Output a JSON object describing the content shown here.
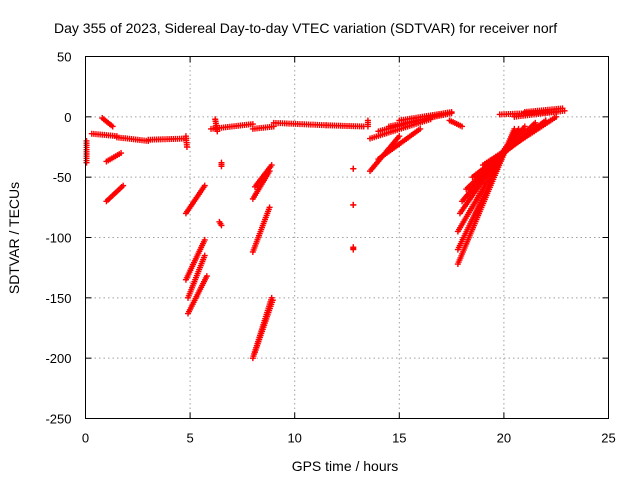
{
  "chart_data": {
    "type": "scatter",
    "title": "Day 355 of 2023, Sidereal Day-to-day VTEC variation (SDTVAR) for receiver norf",
    "xlabel": "GPS time / hours",
    "ylabel": "SDTVAR / TECUs",
    "xlim": [
      0,
      25
    ],
    "ylim": [
      -250,
      50
    ],
    "xticks": [
      0,
      5,
      10,
      15,
      20,
      25
    ],
    "yticks": [
      50,
      0,
      -50,
      -100,
      -150,
      -200,
      -250
    ],
    "grid": true,
    "marker": "+",
    "color": "#ff0000",
    "series": [
      {
        "name": "SDTVAR",
        "segments": [
          {
            "x0": 0.05,
            "x1": 0.05,
            "y0": -20,
            "y1": -38
          },
          {
            "x0": 0.3,
            "x1": 1.5,
            "y0": -14,
            "y1": -16
          },
          {
            "x0": 1.5,
            "x1": 3.0,
            "y0": -17,
            "y1": -20
          },
          {
            "x0": 3.0,
            "x1": 4.8,
            "y0": -19,
            "y1": -18
          },
          {
            "x0": 4.8,
            "x1": 4.85,
            "y0": -16,
            "y1": -25
          },
          {
            "x0": 0.8,
            "x1": 1.3,
            "y0": -1,
            "y1": -8
          },
          {
            "x0": 1.0,
            "x1": 1.7,
            "y0": -37,
            "y1": -30
          },
          {
            "x0": 1.0,
            "x1": 1.8,
            "y0": -70,
            "y1": -57
          },
          {
            "x0": 4.8,
            "x1": 5.7,
            "y0": -80,
            "y1": -57
          },
          {
            "x0": 4.8,
            "x1": 5.7,
            "y0": -135,
            "y1": -102
          },
          {
            "x0": 4.9,
            "x1": 5.7,
            "y0": -150,
            "y1": -115
          },
          {
            "x0": 4.9,
            "x1": 5.8,
            "y0": -163,
            "y1": -132
          },
          {
            "x0": 6.0,
            "x1": 8.0,
            "y0": -10,
            "y1": -6
          },
          {
            "x0": 8.0,
            "x1": 9.0,
            "y0": -10,
            "y1": -8
          },
          {
            "x0": 9.0,
            "x1": 11.5,
            "y0": -5,
            "y1": -7
          },
          {
            "x0": 11.5,
            "x1": 13.3,
            "y0": -7,
            "y1": -8
          },
          {
            "x0": 6.5,
            "x1": 6.5,
            "y0": -38,
            "y1": -41
          },
          {
            "x0": 6.4,
            "x1": 6.5,
            "y0": -87,
            "y1": -90
          },
          {
            "x0": 6.2,
            "x1": 6.3,
            "y0": -2,
            "y1": -12
          },
          {
            "x0": 8.0,
            "x1": 8.8,
            "y0": -68,
            "y1": -45
          },
          {
            "x0": 8.1,
            "x1": 8.9,
            "y0": -58,
            "y1": -40
          },
          {
            "x0": 8.0,
            "x1": 8.8,
            "y0": -112,
            "y1": -75
          },
          {
            "x0": 8.0,
            "x1": 8.9,
            "y0": -200,
            "y1": -150
          },
          {
            "x0": 8.1,
            "x1": 8.95,
            "y0": -195,
            "y1": -152
          },
          {
            "x0": 12.8,
            "x1": 12.8,
            "y0": -43,
            "y1": -43
          },
          {
            "x0": 12.8,
            "x1": 12.8,
            "y0": -73,
            "y1": -73
          },
          {
            "x0": 12.8,
            "x1": 12.8,
            "y0": -108,
            "y1": -110
          },
          {
            "x0": 13.5,
            "x1": 13.5,
            "y0": -3,
            "y1": -8
          },
          {
            "x0": 13.6,
            "x1": 15.0,
            "y0": -45,
            "y1": -16
          },
          {
            "x0": 14.0,
            "x1": 16.0,
            "y0": -35,
            "y1": -10
          },
          {
            "x0": 13.6,
            "x1": 16.5,
            "y0": -18,
            "y1": -2
          },
          {
            "x0": 14.0,
            "x1": 17.0,
            "y0": -12,
            "y1": 2
          },
          {
            "x0": 14.5,
            "x1": 17.5,
            "y0": -8,
            "y1": 3
          },
          {
            "x0": 15.0,
            "x1": 17.5,
            "y0": -3,
            "y1": 4
          },
          {
            "x0": 17.4,
            "x1": 18.0,
            "y0": -3,
            "y1": -8
          },
          {
            "x0": 17.8,
            "x1": 20.5,
            "y0": -122,
            "y1": -10
          },
          {
            "x0": 17.8,
            "x1": 20.5,
            "y0": -110,
            "y1": -12
          },
          {
            "x0": 17.8,
            "x1": 20.5,
            "y0": -95,
            "y1": -15
          },
          {
            "x0": 17.9,
            "x1": 20.7,
            "y0": -80,
            "y1": -10
          },
          {
            "x0": 18.0,
            "x1": 21.0,
            "y0": -70,
            "y1": -8
          },
          {
            "x0": 18.2,
            "x1": 21.5,
            "y0": -60,
            "y1": -5
          },
          {
            "x0": 18.5,
            "x1": 22.0,
            "y0": -50,
            "y1": -3
          },
          {
            "x0": 19.0,
            "x1": 22.5,
            "y0": -40,
            "y1": 0
          },
          {
            "x0": 19.8,
            "x1": 22.5,
            "y0": 2,
            "y1": 4
          },
          {
            "x0": 20.5,
            "x1": 22.9,
            "y0": 0,
            "y1": 5
          },
          {
            "x0": 21.0,
            "x1": 22.8,
            "y0": 4,
            "y1": 7
          }
        ]
      }
    ]
  }
}
